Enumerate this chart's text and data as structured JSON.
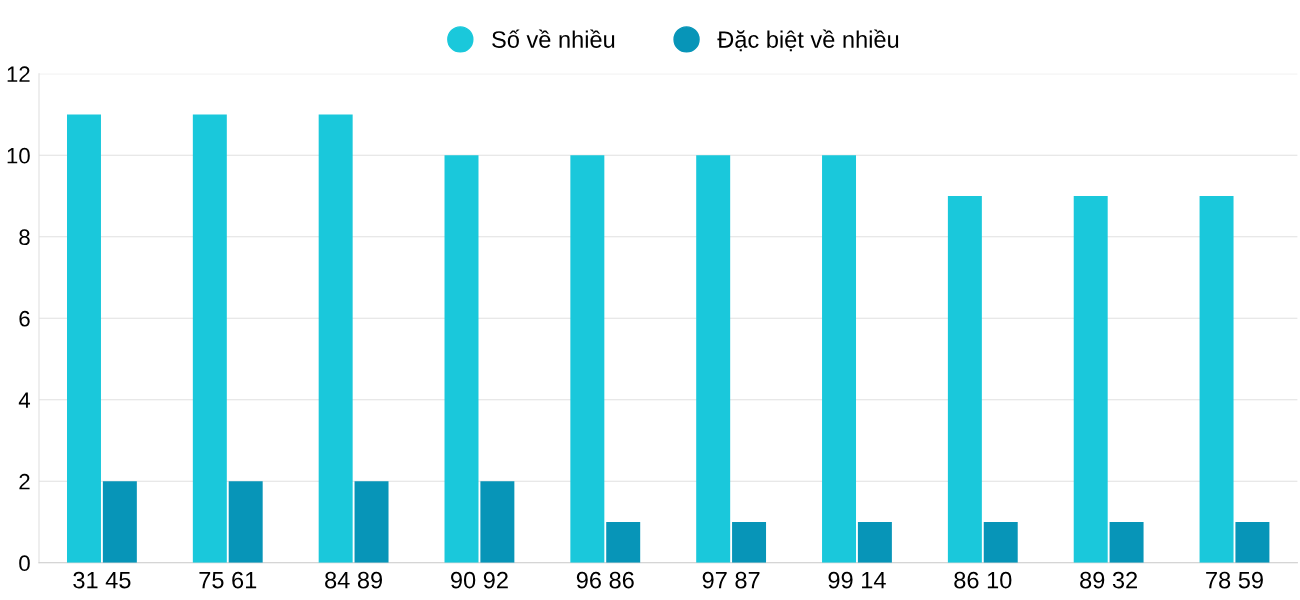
{
  "chart_data": {
    "type": "bar",
    "categories": [
      "31 45",
      "75 61",
      "84 89",
      "90 92",
      "96 86",
      "97 87",
      "99 14",
      "86 10",
      "89 32",
      "78 59"
    ],
    "series": [
      {
        "name": "Số về nhiều",
        "color": "#1ac8db",
        "values": [
          11,
          11,
          11,
          10,
          10,
          10,
          10,
          9,
          9,
          9
        ]
      },
      {
        "name": "Đặc biệt về nhiều",
        "color": "#0795b8",
        "values": [
          2,
          2,
          2,
          2,
          1,
          1,
          1,
          1,
          1,
          1
        ]
      }
    ],
    "ylim": [
      0,
      12
    ],
    "yticks": [
      0,
      2,
      4,
      6,
      8,
      10,
      12
    ],
    "grid": "y",
    "legend": "top"
  }
}
